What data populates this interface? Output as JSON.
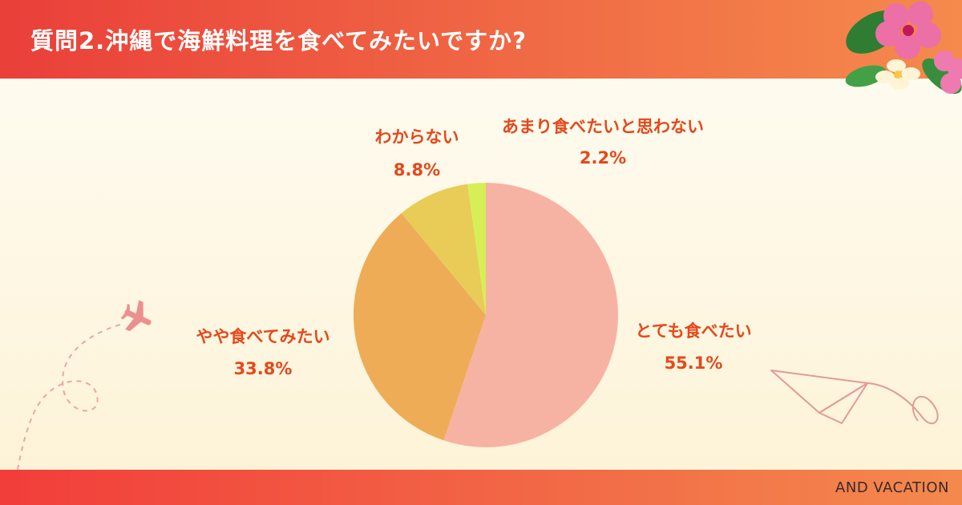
{
  "header": {
    "title": "質問2.沖縄で海鮮料理を食べてみたいですか?"
  },
  "footer": {
    "brand": "AND VACATION"
  },
  "decor": {
    "flower": "hibiscus-flower-icon",
    "airplane": "airplane-icon",
    "paper_plane": "paper-plane-icon"
  },
  "chart_data": {
    "type": "pie",
    "title": "質問2.沖縄で海鮮料理を食べてみたいですか?",
    "slices": [
      {
        "label": "とても食べたい",
        "value": 55.1,
        "display": "55.1%",
        "color": "#f6b3a3"
      },
      {
        "label": "やや食べてみたい",
        "value": 33.8,
        "display": "33.8%",
        "color": "#eeac57"
      },
      {
        "label": "わからない",
        "value": 8.8,
        "display": "8.8%",
        "color": "#e8cc57"
      },
      {
        "label": "あまり食べたいと思わない",
        "value": 2.2,
        "display": "2.2%",
        "color": "#d7ef56"
      }
    ],
    "start": "12 o'clock",
    "direction": "clockwise",
    "label_color": "#e5481c"
  }
}
